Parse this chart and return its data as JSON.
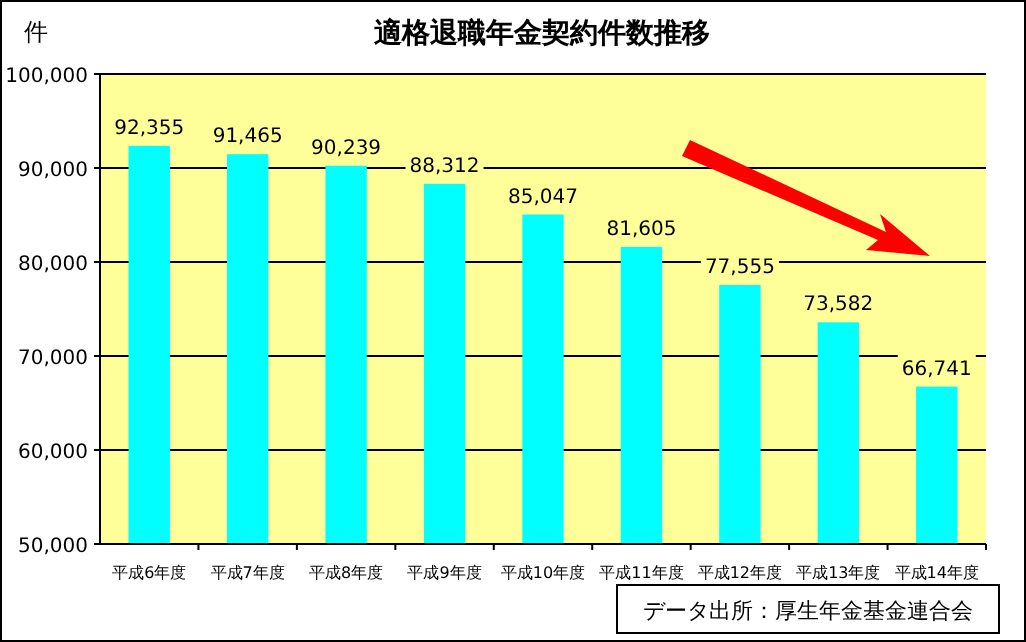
{
  "chart_data": {
    "type": "bar",
    "title": "適格退職年金契約件数推移",
    "ylabel": "件",
    "categories": [
      "平成6年度",
      "平成7年度",
      "平成8年度",
      "平成9年度",
      "平成10年度",
      "平成11年度",
      "平成12年度",
      "平成13年度",
      "平成14年度"
    ],
    "values": [
      92355,
      91465,
      90239,
      88312,
      85047,
      81605,
      77555,
      73582,
      66741
    ],
    "color": "#00ffff",
    "ylim": [
      50000,
      100000
    ],
    "yticks": [
      {
        "value": 50000,
        "label": "50,000"
      },
      {
        "value": 60000,
        "label": "60,000"
      },
      {
        "value": 70000,
        "label": "70,000"
      },
      {
        "value": 80000,
        "label": "80,000"
      },
      {
        "value": 90000,
        "label": "90,000"
      },
      {
        "value": 100000,
        "label": "100,000"
      }
    ],
    "value_labels": [
      "92,355",
      "91,465",
      "90,239",
      "88,312",
      "85,047",
      "81,605",
      "77,555",
      "73,582",
      "66,741"
    ],
    "grid": "y",
    "annotations": [
      "データ出所：厚生年金基金連合会"
    ]
  }
}
